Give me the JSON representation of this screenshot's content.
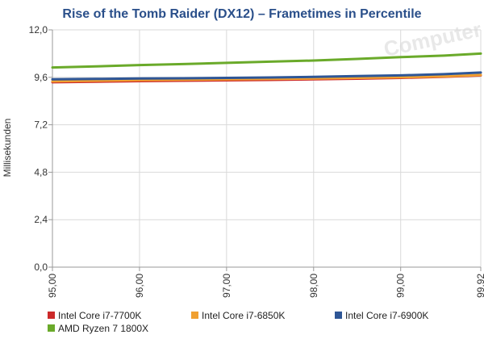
{
  "colors": {
    "title": "#2a4f8a",
    "grid": "#d9d9d9",
    "axis": "#999999",
    "text": "#333333"
  },
  "chart_data": {
    "type": "line",
    "title": "Rise of the Tomb Raider (DX12) – Frametimes in Percentile",
    "xlabel": "",
    "ylabel": "Millisekunden",
    "xlim": [
      95.0,
      99.92
    ],
    "ylim": [
      0.0,
      12.0
    ],
    "x_ticks": [
      95.0,
      96.0,
      97.0,
      98.0,
      99.0,
      99.92
    ],
    "x_tick_labels": [
      "95,00",
      "96,00",
      "97,00",
      "98,00",
      "99,00",
      "99,92"
    ],
    "y_ticks": [
      0.0,
      2.4,
      4.8,
      7.2,
      9.6,
      12.0
    ],
    "y_tick_labels": [
      "0,0",
      "2,4",
      "4,8",
      "7,2",
      "9,6",
      "12,0"
    ],
    "grid": true,
    "legend_position": "bottom",
    "series": [
      {
        "name": "Intel Core i7-7700K",
        "color": "#cc2a2a",
        "x": [
          95.0,
          95.5,
          96.0,
          96.5,
          97.0,
          97.5,
          98.0,
          98.5,
          99.0,
          99.5,
          99.92
        ],
        "y": [
          9.35,
          9.38,
          9.41,
          9.43,
          9.45,
          9.47,
          9.5,
          9.53,
          9.57,
          9.63,
          9.7
        ]
      },
      {
        "name": "Intel Core i7-6850K",
        "color": "#f0a030",
        "x": [
          95.0,
          95.5,
          96.0,
          96.5,
          97.0,
          97.5,
          98.0,
          98.5,
          99.0,
          99.5,
          99.92
        ],
        "y": [
          9.4,
          9.43,
          9.46,
          9.48,
          9.5,
          9.52,
          9.54,
          9.57,
          9.6,
          9.65,
          9.72
        ]
      },
      {
        "name": "Intel Core i7-6900K",
        "color": "#2e5696",
        "x": [
          95.0,
          95.5,
          96.0,
          96.5,
          97.0,
          97.5,
          98.0,
          98.5,
          99.0,
          99.5,
          99.92
        ],
        "y": [
          9.5,
          9.52,
          9.54,
          9.55,
          9.57,
          9.59,
          9.62,
          9.66,
          9.7,
          9.76,
          9.84
        ]
      },
      {
        "name": "AMD Ryzen 7 1800X",
        "color": "#6aaa2a",
        "x": [
          95.0,
          95.5,
          96.0,
          96.5,
          97.0,
          97.5,
          98.0,
          98.5,
          99.0,
          99.5,
          99.92
        ],
        "y": [
          10.1,
          10.15,
          10.22,
          10.27,
          10.33,
          10.39,
          10.45,
          10.53,
          10.62,
          10.7,
          10.8
        ]
      }
    ]
  }
}
